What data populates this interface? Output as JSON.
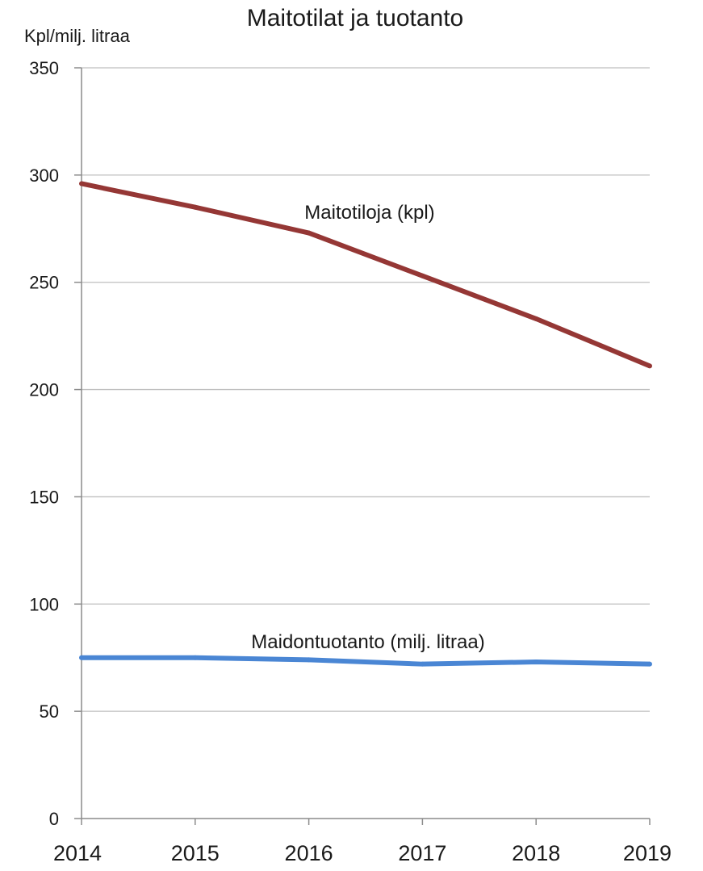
{
  "chart_data": {
    "type": "line",
    "title": "Maitotilat ja tuotanto",
    "ylabel": "Kpl/milj. litraa",
    "xlabel": "",
    "x": [
      2014,
      2015,
      2016,
      2017,
      2018,
      2019
    ],
    "ylim": [
      0,
      350
    ],
    "yticks": [
      0,
      50,
      100,
      150,
      200,
      250,
      300,
      350
    ],
    "grid": true,
    "series": [
      {
        "name": "Maitotiloja (kpl)",
        "color": "#953735",
        "values": [
          296,
          285,
          273,
          253,
          233,
          211
        ]
      },
      {
        "name": "Maidontuotanto (milj. litraa)",
        "color": "#4a86d4",
        "values": [
          75,
          75,
          74,
          72,
          73,
          72
        ]
      }
    ]
  }
}
